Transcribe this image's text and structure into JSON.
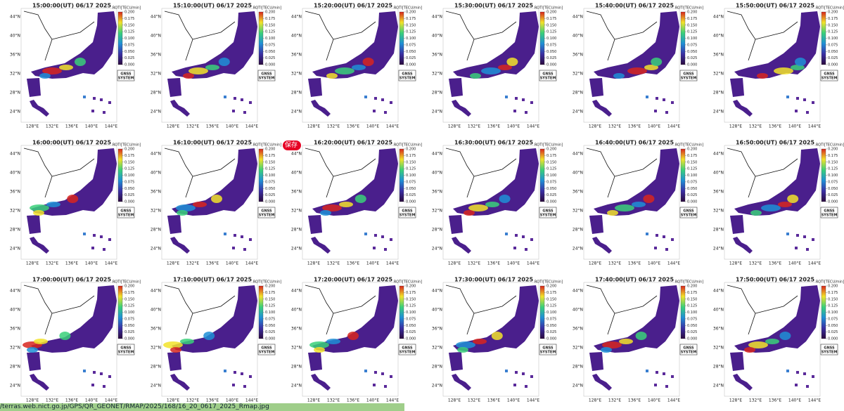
{
  "panels": [
    {
      "title": "15:00:00(UT) 06/17 2025"
    },
    {
      "title": "15:10:00(UT) 06/17 2025"
    },
    {
      "title": "15:20:00(UT) 06/17 2025"
    },
    {
      "title": "15:30:00(UT) 06/17 2025"
    },
    {
      "title": "15:40:00(UT) 06/17 2025"
    },
    {
      "title": "15:50:00(UT) 06/17 2025"
    },
    {
      "title": "16:00:00(UT) 06/17 2025"
    },
    {
      "title": "16:10:00(UT) 06/17 2025"
    },
    {
      "title": "16:20:00(UT) 06/17 2025"
    },
    {
      "title": "16:30:00(UT) 06/17 2025"
    },
    {
      "title": "16:40:00(UT) 06/17 2025"
    },
    {
      "title": "16:50:00(UT) 06/17 2025"
    },
    {
      "title": "17:00:00(UT) 06/17 2025"
    },
    {
      "title": "17:10:00(UT) 06/17 2025"
    },
    {
      "title": "17:20:00(UT) 06/17 2025"
    },
    {
      "title": "17:30:00(UT) 06/17 2025"
    },
    {
      "title": "17:40:00(UT) 06/17 2025"
    },
    {
      "title": "17:50:00(UT) 06/17 2025"
    }
  ],
  "colorbar": {
    "label": "ROTI[TECU/min]",
    "ticks": [
      {
        "value": 0.2,
        "label": "0.200"
      },
      {
        "value": 0.175,
        "label": "0.175"
      },
      {
        "value": 0.15,
        "label": "0.150"
      },
      {
        "value": 0.125,
        "label": "0.125"
      },
      {
        "value": 0.1,
        "label": "0.100"
      },
      {
        "value": 0.075,
        "label": "0.075"
      },
      {
        "value": 0.05,
        "label": "0.050"
      },
      {
        "value": 0.025,
        "label": "0.025"
      },
      {
        "value": 0,
        "label": "0.000"
      }
    ]
  },
  "latitude_labels": [
    "44°N",
    "40°N",
    "36°N",
    "32°N",
    "28°N",
    "24°N"
  ],
  "longitude_labels": [
    "128°E",
    "132°E",
    "136°E",
    "140°E",
    "144°E"
  ],
  "badge": [
    "GNSS",
    "SYSTEM"
  ],
  "save_button": "保存",
  "url": "/terras.web.nict.go.jp/GPS/QR_GEONET/RMAP/2025/168/16_20_0617_2025_Rmap.jpg"
}
